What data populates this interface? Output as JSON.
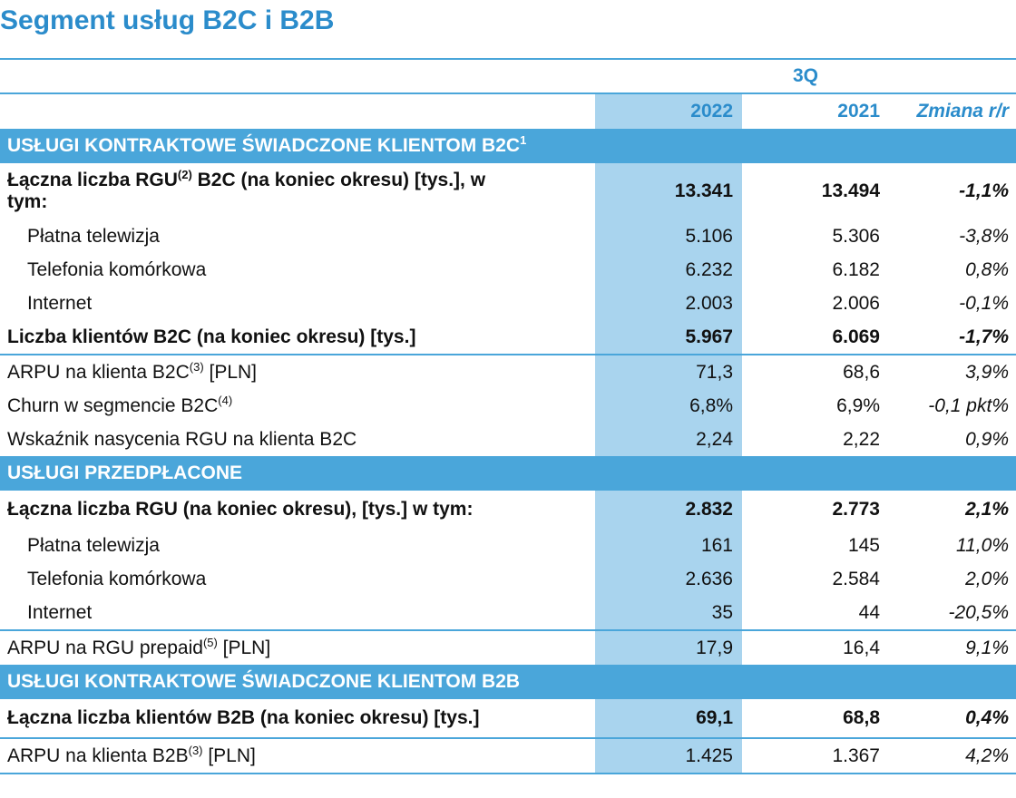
{
  "title": "Segment usług B2C i B2B",
  "period": "3Q",
  "columns": {
    "y2022": "2022",
    "y2021": "2021",
    "change": "Zmiana r/r"
  },
  "sections": [
    {
      "title": "USŁUGI KONTRAKTOWE ŚWIADCZONE KLIENTOM B2C",
      "title_sup": "1",
      "rows": [
        {
          "label_a": "Łączna liczba RGU",
          "sup": "(2)",
          "label_b": " B2C (na koniec okresu) [tys.], w",
          "label_c": "tym:",
          "v2022": "13.341",
          "v2021": "13.494",
          "chg": "-1,1%"
        },
        {
          "label_a": "Płatna telewizja",
          "v2022": "5.106",
          "v2021": "5.306",
          "chg": "-3,8%"
        },
        {
          "label_a": "Telefonia komórkowa",
          "v2022": "6.232",
          "v2021": "6.182",
          "chg": "0,8%"
        },
        {
          "label_a": "Internet",
          "v2022": "2.003",
          "v2021": "2.006",
          "chg": "-0,1%"
        },
        {
          "label_a": "Liczba klientów B2C (na koniec okresu) [tys.]",
          "v2022": "5.967",
          "v2021": "6.069",
          "chg": "-1,7%"
        },
        {
          "label_a": "ARPU na klienta B2C",
          "sup": "(3)",
          "label_b": " [PLN]",
          "v2022": "71,3",
          "v2021": "68,6",
          "chg": "3,9%"
        },
        {
          "label_a": "Churn w segmencie B2C",
          "sup": "(4)",
          "v2022": "6,8%",
          "v2021": "6,9%",
          "chg": "-0,1 pkt%"
        },
        {
          "label_a": "Wskaźnik nasycenia RGU na klienta B2C",
          "v2022": "2,24",
          "v2021": "2,22",
          "chg": "0,9%"
        }
      ]
    },
    {
      "title": "USŁUGI PRZEDPŁACONE",
      "rows": [
        {
          "label_a": "Łączna liczba RGU (na koniec okresu), [tys.] w tym:",
          "v2022": "2.832",
          "v2021": "2.773",
          "chg": "2,1%"
        },
        {
          "label_a": "Płatna telewizja",
          "v2022": "161",
          "v2021": "145",
          "chg": "11,0%"
        },
        {
          "label_a": "Telefonia komórkowa",
          "v2022": "2.636",
          "v2021": "2.584",
          "chg": "2,0%"
        },
        {
          "label_a": "Internet",
          "v2022": "35",
          "v2021": "44",
          "chg": "-20,5%"
        },
        {
          "label_a": "ARPU na RGU prepaid",
          "sup": "(5)",
          "label_b": " [PLN]",
          "v2022": "17,9",
          "v2021": "16,4",
          "chg": "9,1%"
        }
      ]
    },
    {
      "title": "USŁUGI KONTRAKTOWE ŚWIADCZONE KLIENTOM B2B",
      "rows": [
        {
          "label_a": "Łączna liczba klientów B2B (na koniec okresu) [tys.]",
          "v2022": "69,1",
          "v2021": "68,8",
          "chg": "0,4%"
        },
        {
          "label_a": "ARPU na klienta B2B",
          "sup": "(3)",
          "label_b": " [PLN]",
          "v2022": "1.425",
          "v2021": "1.367",
          "chg": "4,2%"
        }
      ]
    }
  ]
}
